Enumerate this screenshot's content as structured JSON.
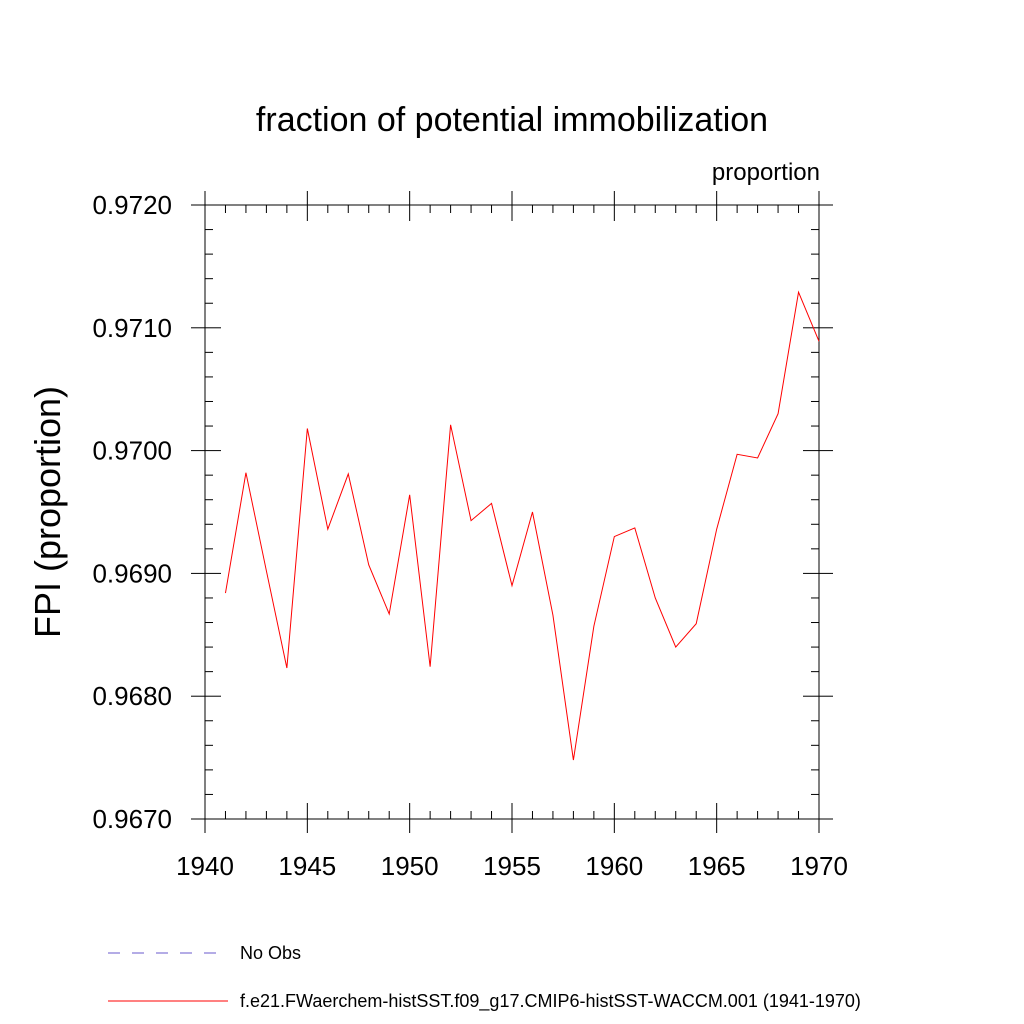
{
  "chart_data": {
    "type": "line",
    "title": "fraction of potential immobilization",
    "units_label": "proportion",
    "ylabel": "FPI  (proportion)",
    "xlabel": "",
    "xlim": [
      1940,
      1970
    ],
    "ylim": [
      0.967,
      0.972
    ],
    "x_ticks": [
      1940,
      1945,
      1950,
      1955,
      1960,
      1965,
      1970
    ],
    "y_ticks": [
      "0.9670",
      "0.9680",
      "0.9690",
      "0.9700",
      "0.9710",
      "0.9720"
    ],
    "y_tick_values": [
      0.967,
      0.968,
      0.969,
      0.97,
      0.971,
      0.972
    ],
    "grid": false,
    "legend_position": "bottom",
    "series": [
      {
        "name": "f.e21.FWaerchem-histSST.f09_g17.CMIP6-histSST-WACCM.001 (1941-1970)",
        "color": "#ff0000",
        "style": "solid",
        "x": [
          1941,
          1942,
          1943,
          1944,
          1945,
          1946,
          1947,
          1948,
          1949,
          1950,
          1951,
          1952,
          1953,
          1954,
          1955,
          1956,
          1957,
          1958,
          1959,
          1960,
          1961,
          1962,
          1963,
          1964,
          1965,
          1966,
          1967,
          1968,
          1969,
          1970
        ],
        "values": [
          0.96884,
          0.96982,
          0.96902,
          0.96823,
          0.97018,
          0.96936,
          0.96981,
          0.96907,
          0.96867,
          0.96964,
          0.96824,
          0.97021,
          0.96943,
          0.96957,
          0.9689,
          0.9695,
          0.96866,
          0.96748,
          0.96857,
          0.9693,
          0.96937,
          0.9688,
          0.9684,
          0.96859,
          0.96936,
          0.96997,
          0.96994,
          0.9703,
          0.97129,
          0.97089
        ]
      }
    ],
    "legend": [
      {
        "label": "No Obs",
        "color": "#6a5acd",
        "style": "dashed"
      },
      {
        "label": "f.e21.FWaerchem-histSST.f09_g17.CMIP6-histSST-WACCM.001 (1941-1970)",
        "color": "#ff0000",
        "style": "solid"
      }
    ]
  }
}
